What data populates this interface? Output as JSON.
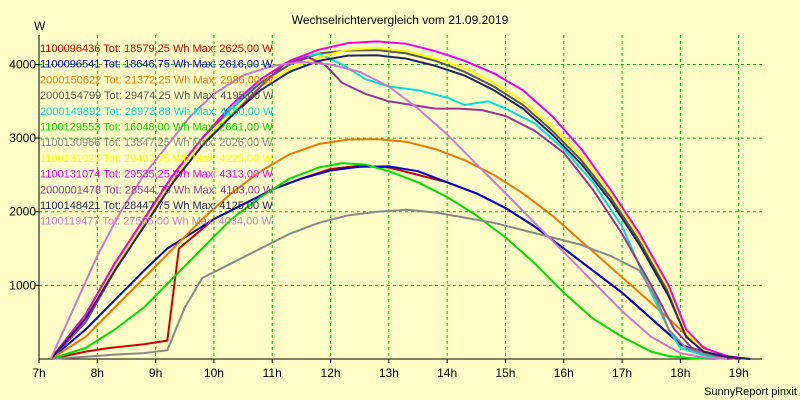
{
  "chart_data": {
    "type": "line",
    "title": "Wechselrichtervergleich vom 21.09.2019",
    "ylabel": "W",
    "credit": "SunnyReport pinxit",
    "xlim": [
      7,
      19.4
    ],
    "ylim": [
      0,
      4400
    ],
    "grid": true,
    "legend_position": "top-left",
    "x_ticks": [
      {
        "value": 7,
        "label": "7h"
      },
      {
        "value": 8,
        "label": "8h"
      },
      {
        "value": 9,
        "label": "9h"
      },
      {
        "value": 10,
        "label": "10h"
      },
      {
        "value": 11,
        "label": "11h"
      },
      {
        "value": 12,
        "label": "12h"
      },
      {
        "value": 13,
        "label": "13h"
      },
      {
        "value": 14,
        "label": "14h"
      },
      {
        "value": 15,
        "label": "15h"
      },
      {
        "value": 16,
        "label": "16h"
      },
      {
        "value": 17,
        "label": "17h"
      },
      {
        "value": 18,
        "label": "18h"
      },
      {
        "value": 19,
        "label": "19h"
      }
    ],
    "y_ticks": [
      {
        "value": 1000,
        "label": "1000"
      },
      {
        "value": 2000,
        "label": "2000"
      },
      {
        "value": 3000,
        "label": "3000"
      },
      {
        "value": 4000,
        "label": "4000"
      }
    ],
    "series": [
      {
        "name": "1100096436 Tot: 18579,25 Wh Max: 2625,00 W",
        "color": "#cc0000",
        "x": [
          7.2,
          7.8,
          8.2,
          8.8,
          9.2,
          9.4,
          9.7,
          10,
          10.5,
          11,
          11.5,
          12,
          12.5,
          13,
          13.5,
          14,
          14.5,
          15,
          15.5,
          16,
          16.5,
          17,
          17.5,
          18,
          18.3,
          18.6,
          19
        ],
        "y": [
          0,
          100,
          150,
          200,
          250,
          1500,
          1700,
          1900,
          2100,
          2300,
          2450,
          2580,
          2625,
          2600,
          2500,
          2400,
          2250,
          2050,
          1800,
          1500,
          1200,
          900,
          550,
          200,
          100,
          50,
          0
        ]
      },
      {
        "name": "1100096541 Tot: 18646,75 Wh Max: 2616,00 W",
        "color": "#0000cc",
        "x": [
          7.2,
          7.8,
          8.3,
          8.8,
          9.2,
          9.6,
          10,
          10.5,
          11,
          11.5,
          12,
          12.5,
          13,
          13.5,
          14,
          14.5,
          15,
          15.5,
          16,
          16.5,
          17,
          17.5,
          18,
          18.3,
          18.6,
          19
        ],
        "y": [
          0,
          400,
          800,
          1200,
          1500,
          1700,
          1900,
          2100,
          2300,
          2450,
          2560,
          2610,
          2616,
          2550,
          2400,
          2250,
          2050,
          1800,
          1500,
          1200,
          900,
          550,
          200,
          100,
          50,
          0
        ]
      },
      {
        "name": "2000150622 Tot: 21372,25 Wh Max: 2986,00 W",
        "color": "#ee7700",
        "x": [
          7.2,
          7.8,
          8.3,
          8.8,
          9.3,
          9.8,
          10.3,
          10.8,
          11.3,
          11.8,
          12.3,
          12.8,
          13.3,
          13.8,
          14.3,
          14.8,
          15.3,
          15.8,
          16.3,
          16.8,
          17.3,
          17.8,
          18.2,
          18.6,
          19
        ],
        "y": [
          0,
          300,
          700,
          1100,
          1500,
          1900,
          2250,
          2550,
          2780,
          2920,
          2980,
          2986,
          2950,
          2850,
          2700,
          2500,
          2250,
          1950,
          1600,
          1250,
          900,
          550,
          250,
          80,
          0
        ]
      },
      {
        "name": "2000154799 Tot: 29474,25 Wh Max: 4195,00 W",
        "color": "#555555",
        "x": [
          7.2,
          7.8,
          8.3,
          8.8,
          9.3,
          9.8,
          10.3,
          10.8,
          11.3,
          11.8,
          12.3,
          12.8,
          13.3,
          13.8,
          14.3,
          14.8,
          15.3,
          15.8,
          16.3,
          16.8,
          17.3,
          17.8,
          18.1,
          18.4,
          18.8,
          19.2
        ],
        "y": [
          0,
          600,
          1300,
          1900,
          2500,
          3000,
          3400,
          3750,
          4000,
          4150,
          4190,
          4195,
          4150,
          4050,
          3900,
          3700,
          3450,
          3100,
          2700,
          2200,
          1600,
          900,
          300,
          100,
          30,
          0
        ]
      },
      {
        "name": "2000149892 Tot: 28973,88 Wh Max: 4150,00 W",
        "color": "#00dddd",
        "x": [
          7.2,
          7.8,
          8.3,
          8.8,
          9.3,
          9.8,
          10.3,
          10.8,
          11.3,
          11.8,
          12.2,
          12.6,
          13,
          13.5,
          14,
          14.3,
          14.7,
          15,
          15.5,
          16,
          16.5,
          17,
          17.5,
          17.8,
          18,
          18.4,
          18.8
        ],
        "y": [
          0,
          500,
          1200,
          1800,
          2400,
          2900,
          3400,
          3800,
          4050,
          4150,
          4000,
          3800,
          3700,
          3650,
          3550,
          3450,
          3500,
          3400,
          3200,
          2850,
          2400,
          1800,
          900,
          400,
          150,
          50,
          0
        ]
      },
      {
        "name": "1100129553 Tot: 16048,00 Wh Max: 2661,00 W",
        "color": "#00dd00",
        "x": [
          7.2,
          7.8,
          8.3,
          8.8,
          9.3,
          9.8,
          10.3,
          10.8,
          11.3,
          11.8,
          12.2,
          12.6,
          13,
          13.5,
          14,
          14.5,
          15,
          15.5,
          16,
          16.5,
          17,
          17.5,
          17.8,
          18.2,
          18.6
        ],
        "y": [
          0,
          150,
          400,
          700,
          1100,
          1500,
          1900,
          2200,
          2450,
          2600,
          2661,
          2640,
          2550,
          2400,
          2200,
          1950,
          1650,
          1300,
          900,
          550,
          300,
          100,
          40,
          10,
          0
        ]
      },
      {
        "name": "1100130966 Tot: 13847,25 Wh Max: 2026,00 W",
        "color": "#888888",
        "x": [
          7.2,
          7.8,
          8.3,
          8.8,
          9.2,
          9.5,
          9.8,
          10.3,
          10.8,
          11.3,
          11.8,
          12.3,
          12.8,
          13.3,
          13.8,
          14.3,
          14.8,
          15.3,
          15.8,
          16.3,
          16.8,
          17.3,
          17.6,
          17.8,
          18.1,
          18.5,
          19
        ],
        "y": [
          0,
          30,
          60,
          80,
          120,
          700,
          1100,
          1300,
          1500,
          1700,
          1850,
          1950,
          2000,
          2026,
          1990,
          1920,
          1850,
          1750,
          1650,
          1550,
          1400,
          1200,
          800,
          400,
          150,
          50,
          0
        ]
      },
      {
        "name": "1100131025 Tot: 29432,75 Wh Max: 4225,00 W",
        "color": "#ffff00",
        "x": [
          7.2,
          7.8,
          8.3,
          8.8,
          9.3,
          9.8,
          10.3,
          10.8,
          11.3,
          11.8,
          12.3,
          12.8,
          13.3,
          13.8,
          14.3,
          14.8,
          15.3,
          15.8,
          16.3,
          16.8,
          17.3,
          17.8,
          18.1,
          18.4,
          18.8,
          19.2
        ],
        "y": [
          0,
          550,
          1250,
          1850,
          2450,
          2950,
          3350,
          3700,
          3950,
          4100,
          4200,
          4225,
          4180,
          4080,
          3950,
          3750,
          3500,
          3150,
          2750,
          2250,
          1650,
          950,
          350,
          120,
          30,
          0
        ]
      },
      {
        "name": "1100131074 Tot: 29535,25 Wh Max: 4313,00 W",
        "color": "#ee00ee",
        "x": [
          7.2,
          7.8,
          8.3,
          8.8,
          9.3,
          9.8,
          10.3,
          10.8,
          11.3,
          11.8,
          12.3,
          12.8,
          13.3,
          13.8,
          14.3,
          14.8,
          15.3,
          15.8,
          16.3,
          16.8,
          17.3,
          17.8,
          18.1,
          18.4,
          18.8,
          19.2
        ],
        "y": [
          0,
          600,
          1300,
          1900,
          2500,
          3000,
          3450,
          3800,
          4050,
          4200,
          4290,
          4313,
          4280,
          4180,
          4050,
          3880,
          3650,
          3300,
          2850,
          2300,
          1700,
          1000,
          400,
          150,
          40,
          0
        ]
      },
      {
        "name": "2000001478 Tot: 28544,75 Wh Max: 4103,00 W",
        "color": "#993399",
        "x": [
          7.2,
          7.8,
          8.3,
          8.8,
          9.3,
          9.8,
          10.3,
          10.8,
          11.2,
          11.6,
          11.9,
          12.2,
          12.6,
          13,
          13.4,
          13.8,
          14.2,
          14.6,
          15,
          15.5,
          16,
          16.5,
          17,
          17.5,
          17.9,
          18.2,
          18.6,
          19
        ],
        "y": [
          0,
          500,
          1200,
          1800,
          2400,
          2900,
          3300,
          3700,
          4000,
          4103,
          4000,
          3750,
          3600,
          3500,
          3450,
          3400,
          3400,
          3380,
          3300,
          3100,
          2800,
          2300,
          1700,
          1000,
          400,
          150,
          50,
          0
        ]
      },
      {
        "name": "1100148421 Tot: 28447,75 Wh Max: 4125,00 W",
        "color": "#222266",
        "x": [
          7.2,
          7.8,
          8.3,
          8.8,
          9.3,
          9.8,
          10.3,
          10.8,
          11.3,
          11.8,
          12.3,
          12.8,
          13.3,
          13.8,
          14.3,
          14.8,
          15.3,
          15.8,
          16.3,
          16.8,
          17.3,
          17.8,
          18.1,
          18.4,
          18.8,
          19.2
        ],
        "y": [
          0,
          550,
          1200,
          1800,
          2400,
          2900,
          3300,
          3650,
          3900,
          4050,
          4120,
          4125,
          4080,
          3980,
          3850,
          3650,
          3400,
          3050,
          2650,
          2150,
          1550,
          850,
          300,
          100,
          30,
          0
        ]
      },
      {
        "name": "1100119477 Tot: 27505,00 Wh Max: 4034,00 W",
        "color": "#cc77cc",
        "x": [
          7.2,
          7.6,
          8.0,
          8.4,
          8.8,
          9.2,
          9.6,
          10,
          10.5,
          11,
          11.5,
          12,
          12.5,
          13,
          13.5,
          14,
          14.5,
          15,
          15.5,
          16,
          16.5,
          17,
          17.5,
          18,
          18.4,
          18.8
        ],
        "y": [
          0,
          700,
          1400,
          2000,
          2500,
          2900,
          3300,
          3600,
          3850,
          3980,
          4034,
          4000,
          3900,
          3700,
          3400,
          3050,
          2650,
          2250,
          1850,
          1450,
          1050,
          650,
          300,
          80,
          20,
          0
        ]
      }
    ]
  }
}
